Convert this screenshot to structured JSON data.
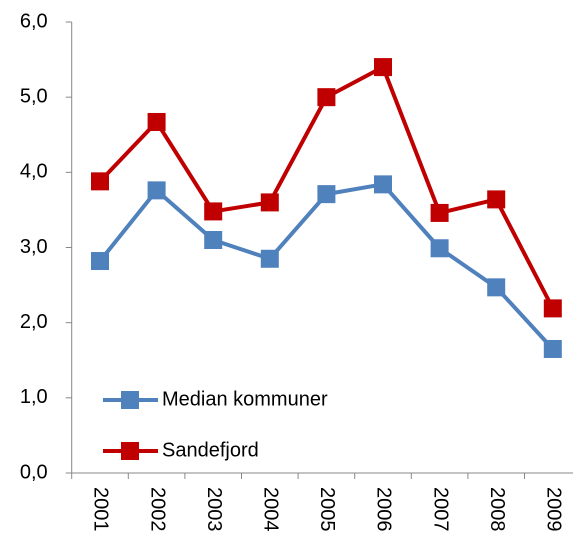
{
  "chart_data": {
    "type": "line",
    "categories": [
      "2001",
      "2002",
      "2003",
      "2004",
      "2005",
      "2006",
      "2007",
      "2008",
      "2009"
    ],
    "series": [
      {
        "name": "Median kommuner",
        "color": "#4f81bd",
        "values": [
          2.82,
          3.76,
          3.1,
          2.85,
          3.71,
          3.84,
          2.99,
          2.47,
          1.65
        ]
      },
      {
        "name": "Sandefjord",
        "color": "#c00000",
        "values": [
          3.88,
          4.67,
          3.48,
          3.6,
          5.0,
          5.4,
          3.46,
          3.64,
          2.19
        ]
      }
    ],
    "ylim": [
      0,
      6
    ],
    "yticks": [
      {
        "value": 0,
        "label": "0,0"
      },
      {
        "value": 1,
        "label": "1,0"
      },
      {
        "value": 2,
        "label": "2,0"
      },
      {
        "value": 3,
        "label": "3,0"
      },
      {
        "value": 4,
        "label": "4,0"
      },
      {
        "value": 5,
        "label": "5,0"
      },
      {
        "value": 6,
        "label": "6,0"
      }
    ],
    "grid": false,
    "legend": "lower left"
  }
}
